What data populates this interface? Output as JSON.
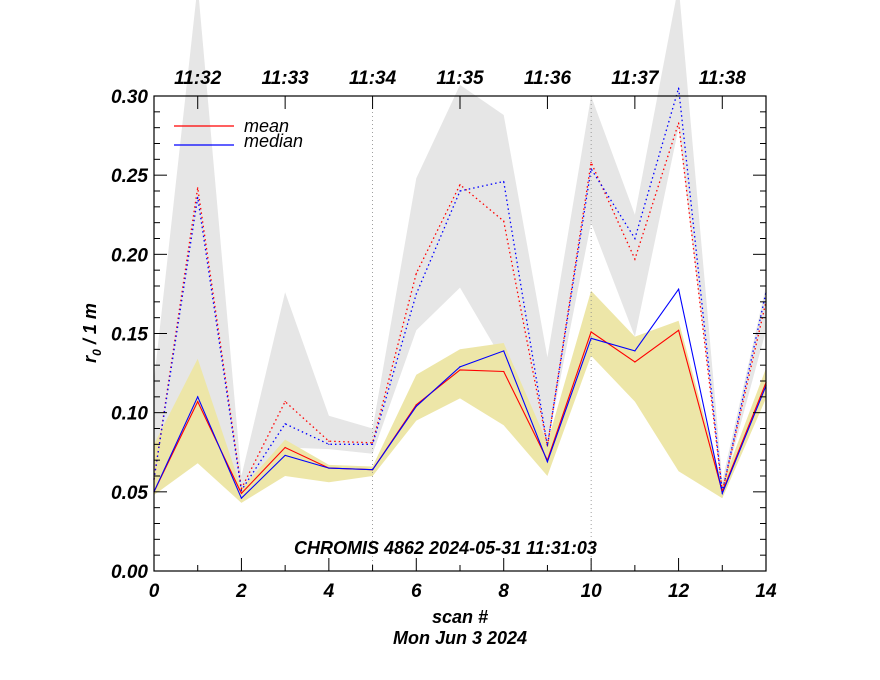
{
  "chart_data": {
    "type": "line",
    "xlabel": "scan #",
    "ylabel_main": "r",
    "ylabel_sub": "0",
    "ylabel_rest": " / 1 m",
    "date_label": "Mon Jun  3 2024",
    "annotation": "CHROMIS 4862 2024-05-31 11:31:03",
    "xlim": [
      0,
      14
    ],
    "ylim": [
      0,
      0.3
    ],
    "x_ticks": [
      0,
      2,
      4,
      6,
      8,
      10,
      12,
      14
    ],
    "x_tick_labels": [
      "0",
      "2",
      "4",
      "6",
      "8",
      "10",
      "12",
      "14"
    ],
    "y_ticks": [
      0,
      0.05,
      0.1,
      0.15,
      0.2,
      0.25,
      0.3
    ],
    "y_tick_labels": [
      "0.00",
      "0.05",
      "0.10",
      "0.15",
      "0.20",
      "0.25",
      "0.30"
    ],
    "top_time_ticks": [
      {
        "x": 1,
        "label": "11:32"
      },
      {
        "x": 3,
        "label": "11:33"
      },
      {
        "x": 5,
        "label": "11:34"
      },
      {
        "x": 7,
        "label": "11:35"
      },
      {
        "x": 9,
        "label": "11:36"
      },
      {
        "x": 11,
        "label": "11:37"
      },
      {
        "x": 13,
        "label": "11:38"
      }
    ],
    "vertical_markers": [
      5,
      10
    ],
    "x": [
      0,
      1,
      2,
      3,
      4,
      5,
      6,
      7,
      8,
      9,
      10,
      11,
      12,
      13,
      14
    ],
    "gray_band": {
      "color": "#e6e6e6",
      "upper": [
        0.12,
        0.37,
        0.06,
        0.176,
        0.098,
        0.09,
        0.248,
        0.307,
        0.288,
        0.135,
        0.3,
        0.225,
        0.37,
        0.057,
        0.18
      ],
      "lower": [
        0.062,
        0.11,
        0.045,
        0.078,
        0.077,
        0.074,
        0.152,
        0.179,
        0.132,
        0.08,
        0.22,
        0.148,
        0.28,
        0.05,
        0.152
      ]
    },
    "yellow_band": {
      "color": "#ede6a8",
      "upper": [
        0.08,
        0.134,
        0.052,
        0.083,
        0.067,
        0.066,
        0.124,
        0.14,
        0.144,
        0.081,
        0.177,
        0.148,
        0.158,
        0.055,
        0.128
      ],
      "lower": [
        0.048,
        0.068,
        0.043,
        0.06,
        0.056,
        0.06,
        0.095,
        0.109,
        0.092,
        0.06,
        0.136,
        0.107,
        0.063,
        0.046,
        0.109
      ]
    },
    "series": [
      {
        "name": "mean",
        "color": "#ff0000",
        "style": "solid",
        "values": [
          0.05,
          0.107,
          0.049,
          0.078,
          0.065,
          0.064,
          0.105,
          0.127,
          0.126,
          0.07,
          0.151,
          0.132,
          0.152,
          0.05,
          0.119
        ]
      },
      {
        "name": "median",
        "color": "#0000ff",
        "style": "solid",
        "values": [
          0.05,
          0.11,
          0.046,
          0.073,
          0.065,
          0.064,
          0.104,
          0.129,
          0.139,
          0.069,
          0.147,
          0.139,
          0.178,
          0.049,
          0.117
        ]
      },
      {
        "name": "mean",
        "color": "#ff0000",
        "style": "dotted",
        "values": [
          0.058,
          0.242,
          0.052,
          0.107,
          0.082,
          0.081,
          0.188,
          0.244,
          0.221,
          0.079,
          0.258,
          0.197,
          0.283,
          0.05,
          0.17
        ]
      },
      {
        "name": "median",
        "color": "#0000ff",
        "style": "dotted",
        "values": [
          0.058,
          0.236,
          0.051,
          0.093,
          0.08,
          0.08,
          0.175,
          0.24,
          0.246,
          0.079,
          0.254,
          0.21,
          0.305,
          0.05,
          0.176
        ]
      }
    ],
    "legend": [
      {
        "name": "mean",
        "color": "#ff0000"
      },
      {
        "name": "median",
        "color": "#0000ff"
      }
    ]
  }
}
